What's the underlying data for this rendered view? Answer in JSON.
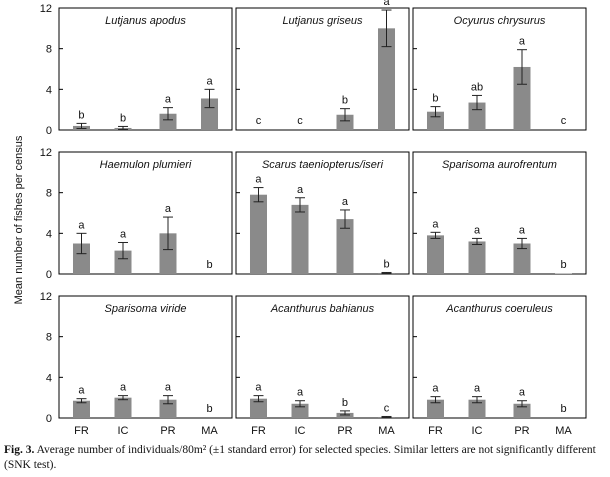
{
  "figure": {
    "ylabel": "Mean number of fishes per census",
    "categories": [
      "FR",
      "IC",
      "PR",
      "MA"
    ],
    "colors": {
      "bar": "#8a8a8a",
      "axis": "#000000"
    }
  },
  "caption": {
    "label": "Fig. 3.",
    "text": " Average number of individuals/80m² (±1 standard error) for selected species. Similar letters are not significantly different (SNK test)."
  },
  "chart_data": [
    {
      "type": "bar",
      "title": "Lutjanus apodus",
      "categories": [
        "FR",
        "IC",
        "PR",
        "MA"
      ],
      "values": [
        0.4,
        0.2,
        1.6,
        3.1
      ],
      "errors": [
        0.25,
        0.15,
        0.6,
        0.9
      ],
      "letters": [
        "b",
        "b",
        "a",
        "a"
      ],
      "ylim": [
        0,
        12
      ],
      "yticks": [
        0,
        4,
        8,
        12
      ]
    },
    {
      "type": "bar",
      "title": "Lutjanus griseus",
      "categories": [
        "FR",
        "IC",
        "PR",
        "MA"
      ],
      "values": [
        0,
        0,
        1.5,
        10.0
      ],
      "errors": [
        0,
        0,
        0.6,
        1.8
      ],
      "letters": [
        "c",
        "c",
        "b",
        "a"
      ],
      "ylim": [
        0,
        12
      ],
      "yticks": [
        0,
        4,
        8,
        12
      ]
    },
    {
      "type": "bar",
      "title": "Ocyurus chrysurus",
      "categories": [
        "FR",
        "IC",
        "PR",
        "MA"
      ],
      "values": [
        1.8,
        2.7,
        6.2,
        0
      ],
      "errors": [
        0.5,
        0.7,
        1.7,
        0
      ],
      "letters": [
        "b",
        "ab",
        "a",
        "c"
      ],
      "ylim": [
        0,
        12
      ],
      "yticks": [
        0,
        4,
        8,
        12
      ]
    },
    {
      "type": "bar",
      "title": "Haemulon plumieri",
      "categories": [
        "FR",
        "IC",
        "PR",
        "MA"
      ],
      "values": [
        3.0,
        2.3,
        4.0,
        0
      ],
      "errors": [
        1.0,
        0.8,
        1.6,
        0
      ],
      "letters": [
        "a",
        "a",
        "a",
        "b"
      ],
      "ylim": [
        0,
        12
      ],
      "yticks": [
        0,
        4,
        8,
        12
      ]
    },
    {
      "type": "bar",
      "title": "Scarus taeniopterus/iseri",
      "categories": [
        "FR",
        "IC",
        "PR",
        "MA"
      ],
      "values": [
        7.8,
        6.8,
        5.4,
        0.1
      ],
      "errors": [
        0.7,
        0.7,
        0.9,
        0.05
      ],
      "letters": [
        "a",
        "a",
        "a",
        "b"
      ],
      "ylim": [
        0,
        12
      ],
      "yticks": [
        0,
        4,
        8,
        12
      ]
    },
    {
      "type": "bar",
      "title": "Sparisoma aurofrentum",
      "categories": [
        "FR",
        "IC",
        "PR",
        "MA"
      ],
      "values": [
        3.8,
        3.2,
        3.0,
        0.05
      ],
      "errors": [
        0.3,
        0.3,
        0.5,
        0
      ],
      "letters": [
        "a",
        "a",
        "a",
        "b"
      ],
      "ylim": [
        0,
        12
      ],
      "yticks": [
        0,
        4,
        8,
        12
      ]
    },
    {
      "type": "bar",
      "title": "Sparisoma viride",
      "categories": [
        "FR",
        "IC",
        "PR",
        "MA"
      ],
      "values": [
        1.7,
        2.0,
        1.8,
        0
      ],
      "errors": [
        0.2,
        0.2,
        0.4,
        0
      ],
      "letters": [
        "a",
        "a",
        "a",
        "b"
      ],
      "ylim": [
        0,
        12
      ],
      "yticks": [
        0,
        4,
        8,
        12
      ]
    },
    {
      "type": "bar",
      "title": "Acanthurus bahianus",
      "categories": [
        "FR",
        "IC",
        "PR",
        "MA"
      ],
      "values": [
        1.9,
        1.4,
        0.5,
        0.1
      ],
      "errors": [
        0.3,
        0.3,
        0.2,
        0.05
      ],
      "letters": [
        "a",
        "a",
        "b",
        "c"
      ],
      "ylim": [
        0,
        12
      ],
      "yticks": [
        0,
        4,
        8,
        12
      ]
    },
    {
      "type": "bar",
      "title": "Acanthurus coeruleus",
      "categories": [
        "FR",
        "IC",
        "PR",
        "MA"
      ],
      "values": [
        1.8,
        1.8,
        1.4,
        0
      ],
      "errors": [
        0.3,
        0.3,
        0.3,
        0
      ],
      "letters": [
        "a",
        "a",
        "a",
        "b"
      ],
      "ylim": [
        0,
        12
      ],
      "yticks": [
        0,
        4,
        8,
        12
      ]
    }
  ]
}
